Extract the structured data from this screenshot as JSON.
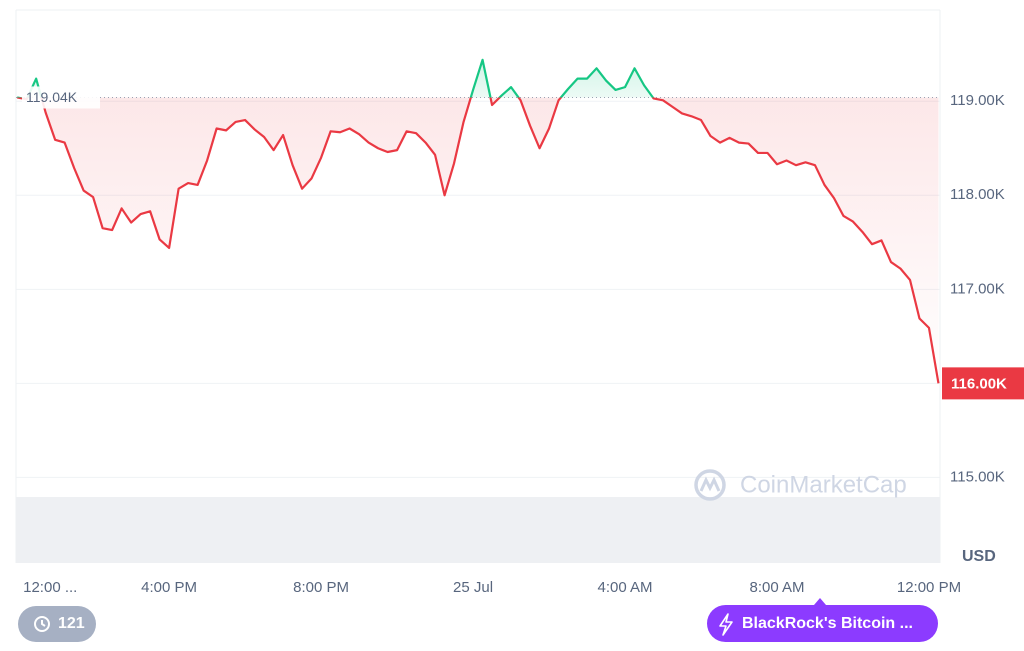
{
  "chart_data": {
    "type": "line",
    "baseline": {
      "value": 119.04,
      "label": "119.04K"
    },
    "current": {
      "value": 116.0,
      "label": "116.00K"
    },
    "y_unit": "USD",
    "watermark": "CoinMarketCap",
    "colors": {
      "up": "#16c784",
      "down": "#ea3943"
    },
    "grid": true,
    "xlim": [
      -0.03,
      24.29
    ],
    "xticks": [
      {
        "value": 0,
        "label": "12:00 ..."
      },
      {
        "value": 4,
        "label": "4:00 PM"
      },
      {
        "value": 8,
        "label": "8:00 PM"
      },
      {
        "value": 12,
        "label": "25 Jul"
      },
      {
        "value": 16,
        "label": "4:00 AM"
      },
      {
        "value": 20,
        "label": "8:00 AM"
      },
      {
        "value": 24,
        "label": "12:00 PM"
      }
    ],
    "ylim": [
      114.09,
      119.97
    ],
    "yticks": [
      {
        "value": 115,
        "label": "115.00K"
      },
      {
        "value": 116,
        "label": "116.00K"
      },
      {
        "value": 117,
        "label": "117.00K"
      },
      {
        "value": 118,
        "label": "118.00K"
      },
      {
        "value": 119,
        "label": "119.00K"
      }
    ],
    "x": [
      0,
      0.25,
      0.5,
      0.75,
      1,
      1.25,
      1.5,
      1.75,
      2,
      2.25,
      2.5,
      2.75,
      3,
      3.25,
      3.5,
      3.75,
      4,
      4.25,
      4.5,
      4.75,
      5,
      5.25,
      5.5,
      5.75,
      6,
      6.25,
      6.5,
      6.75,
      7,
      7.25,
      7.5,
      7.75,
      8,
      8.25,
      8.5,
      8.75,
      9,
      9.25,
      9.5,
      9.75,
      10,
      10.25,
      10.5,
      10.75,
      11,
      11.25,
      11.5,
      11.75,
      12,
      12.25,
      12.5,
      12.75,
      13,
      13.25,
      13.5,
      13.75,
      14,
      14.25,
      14.5,
      14.75,
      15,
      15.25,
      15.5,
      15.75,
      16,
      16.25,
      16.5,
      16.75,
      17,
      17.25,
      17.5,
      17.75,
      18,
      18.25,
      18.5,
      18.75,
      19,
      19.25,
      19.5,
      19.75,
      20,
      20.25,
      20.5,
      20.75,
      21,
      21.25,
      21.5,
      21.75,
      22,
      22.25,
      22.5,
      22.75,
      23,
      23.25,
      23.5,
      23.75,
      24,
      24.25
    ],
    "values": [
      119.04,
      119.02,
      119.24,
      118.88,
      118.59,
      118.56,
      118.29,
      118.05,
      117.98,
      117.65,
      117.63,
      117.86,
      117.71,
      117.8,
      117.83,
      117.53,
      117.44,
      118.07,
      118.13,
      118.11,
      118.37,
      118.71,
      118.69,
      118.78,
      118.8,
      118.7,
      118.62,
      118.48,
      118.64,
      118.32,
      118.07,
      118.18,
      118.4,
      118.68,
      118.67,
      118.71,
      118.65,
      118.56,
      118.5,
      118.46,
      118.48,
      118.68,
      118.66,
      118.56,
      118.43,
      118.0,
      118.34,
      118.78,
      119.12,
      119.44,
      118.96,
      119.06,
      119.15,
      119.01,
      118.74,
      118.5,
      118.71,
      119.01,
      119.13,
      119.24,
      119.24,
      119.35,
      119.22,
      119.12,
      119.15,
      119.35,
      119.17,
      119.03,
      119.01,
      118.94,
      118.87,
      118.84,
      118.8,
      118.63,
      118.56,
      118.61,
      118.56,
      118.55,
      118.45,
      118.45,
      118.33,
      118.37,
      118.32,
      118.35,
      118.32,
      118.11,
      117.97,
      117.78,
      117.72,
      117.61,
      117.48,
      117.52,
      117.29,
      117.22,
      117.1,
      116.69,
      116.59,
      116.0
    ]
  },
  "buttons": {
    "history": "121",
    "news": "BlackRock's Bitcoin ..."
  }
}
